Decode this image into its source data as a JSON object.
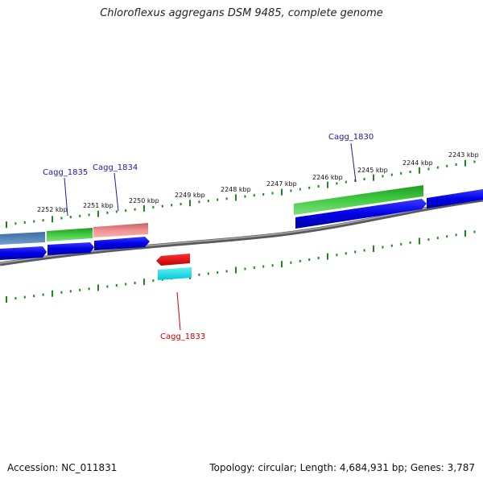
{
  "title": "Chloroflexus aggregans DSM 9485, complete genome",
  "footer": {
    "accession": "Accession: NC_011831",
    "summary": "Topology: circular; Length: 4,684,931 bp; Genes: 3,787"
  },
  "colors": {
    "backbone": "#808080",
    "ticks": "#1a8a1a",
    "cds_forward": "#0000ee",
    "gene_green": "#2dbb2d",
    "gene_steel": "#4a7fb0",
    "gene_pink": "#e88080",
    "gene_red": "#ee0000",
    "gene_cyan": "#00e0e8",
    "label_blue": "#1a1aa8",
    "label_red": "#cc0000"
  },
  "scale_labels": [
    "2252 kbp",
    "2251 kbp",
    "2250 kbp",
    "2249 kbp",
    "2248 kbp",
    "2247 kbp",
    "2246 kbp",
    "2245 kbp",
    "2244 kbp",
    "2243 kbp"
  ],
  "gene_labels": [
    {
      "id": "g1835",
      "text": "Cagg_1835",
      "color": "blue"
    },
    {
      "id": "g1834",
      "text": "Cagg_1834",
      "color": "blue"
    },
    {
      "id": "g1830",
      "text": "Cagg_1830",
      "color": "blue"
    },
    {
      "id": "g1833",
      "text": "Cagg_1833",
      "color": "red"
    }
  ]
}
